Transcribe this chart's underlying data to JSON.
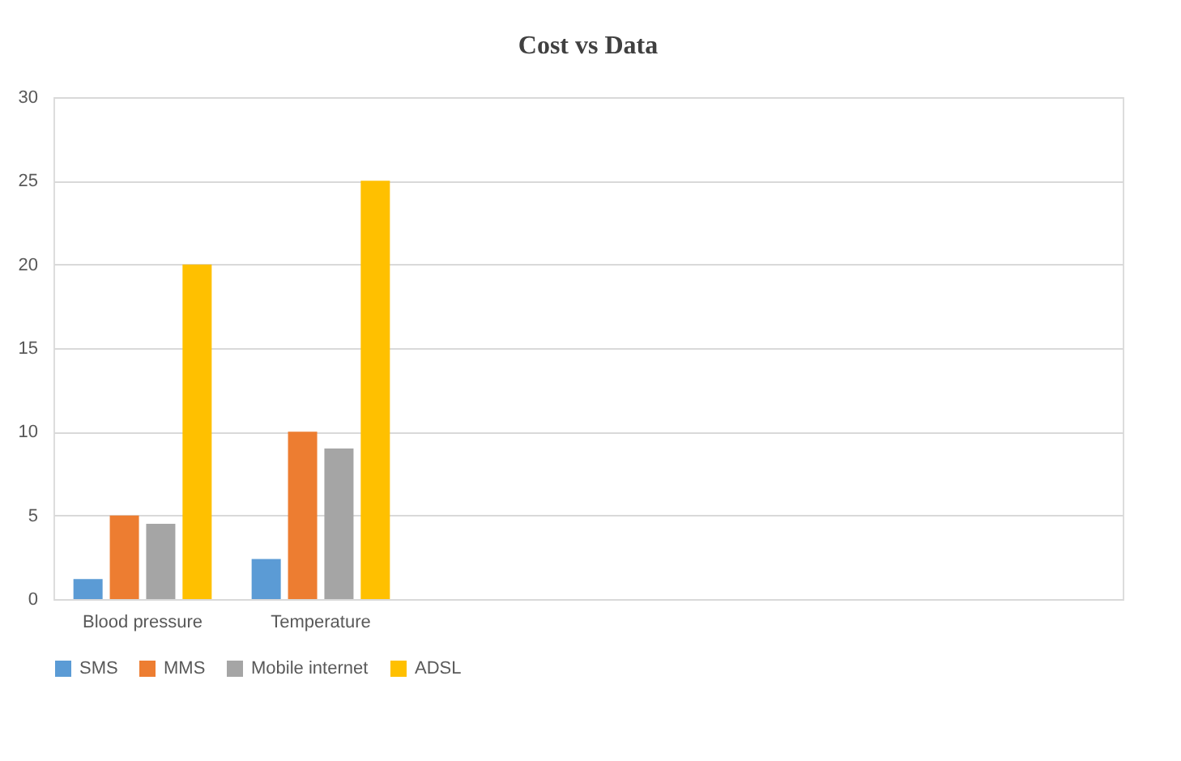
{
  "chart_data": {
    "type": "bar",
    "title": "Cost vs Data",
    "categories": [
      "Blood pressure",
      "Temperature",
      null,
      null,
      null,
      null
    ],
    "series": [
      {
        "name": "SMS",
        "color": "#5b9bd5",
        "values": [
          1.2,
          2.4,
          null,
          null,
          null,
          null
        ]
      },
      {
        "name": "MMS",
        "color": "#ed7d31",
        "values": [
          5,
          10,
          null,
          null,
          null,
          null
        ]
      },
      {
        "name": "Mobile internet",
        "color": "#a5a5a5",
        "values": [
          4.5,
          9,
          null,
          null,
          null,
          null
        ]
      },
      {
        "name": "ADSL",
        "color": "#ffc000",
        "values": [
          20,
          25,
          null,
          null,
          null,
          null
        ]
      }
    ],
    "ylim": [
      0,
      30
    ],
    "yticks": [
      0,
      5,
      10,
      15,
      20,
      25,
      30
    ],
    "grid": "y",
    "legend": "bottom"
  }
}
